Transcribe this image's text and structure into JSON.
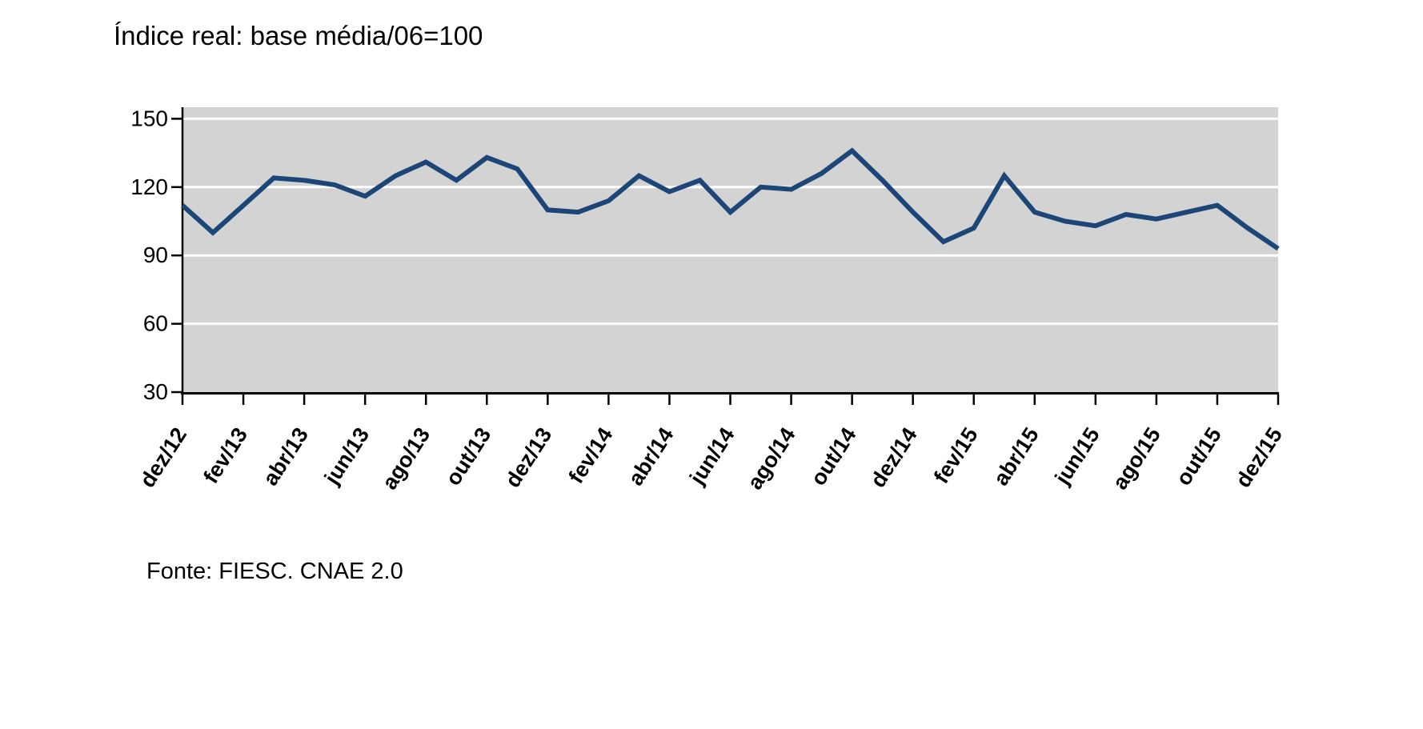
{
  "chart": {
    "title": "Índice real: base média/06=100",
    "source": "Fonte: FIESC. CNAE 2.0"
  },
  "chart_data": {
    "type": "line",
    "title": "Índice real: base média/06=100",
    "source": "Fonte: FIESC. CNAE 2.0",
    "x_tick_labels": [
      "dez/12",
      "fev/13",
      "abr/13",
      "jun/13",
      "ago/13",
      "out/13",
      "dez/13",
      "fev/14",
      "abr/14",
      "jun/14",
      "ago/14",
      "out/14",
      "dez/14",
      "fev/15",
      "abr/15",
      "jun/15",
      "ago/15",
      "out/15",
      "dez/15"
    ],
    "x_monthly": [
      "dez/12",
      "jan/13",
      "fev/13",
      "mar/13",
      "abr/13",
      "mai/13",
      "jun/13",
      "jul/13",
      "ago/13",
      "set/13",
      "out/13",
      "nov/13",
      "dez/13",
      "jan/14",
      "fev/14",
      "mar/14",
      "abr/14",
      "mai/14",
      "jun/14",
      "jul/14",
      "ago/14",
      "set/14",
      "out/14",
      "nov/14",
      "dez/14",
      "jan/15",
      "fev/15",
      "mar/15",
      "abr/15",
      "mai/15",
      "jun/15",
      "jul/15",
      "ago/15",
      "set/15",
      "out/15",
      "nov/15",
      "dez/15"
    ],
    "series": [
      {
        "name": "Índice real (base média/06=100)",
        "values": [
          112,
          100,
          112,
          124,
          123,
          121,
          116,
          125,
          131,
          123,
          133,
          128,
          110,
          109,
          114,
          125,
          118,
          123,
          109,
          120,
          119,
          126,
          136,
          123,
          109,
          96,
          102,
          125,
          109,
          105,
          103,
          108,
          106,
          109,
          112,
          102,
          93
        ]
      }
    ],
    "ylim": [
      30,
      150
    ],
    "yticks": [
      30,
      60,
      90,
      120,
      150
    ],
    "grid": "horizontal-white-on-gray",
    "legend": "none",
    "plot_bg": "#d3d3d3",
    "line_color": "#1c4677",
    "axis_color": "#000000",
    "gridline_color": "#ffffff",
    "xlabel": "",
    "ylabel": ""
  }
}
